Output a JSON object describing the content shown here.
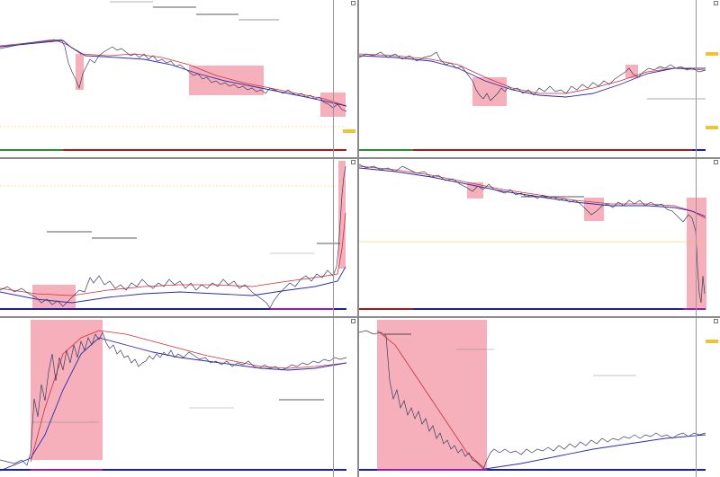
{
  "window": {
    "layout": "3x2 chart grid"
  },
  "colors": {
    "price": "#3d3d5c",
    "ema_red": "#d62b3a",
    "ema_blue": "#2a2ab0",
    "highlight": "#f4a7b5",
    "level_line": "#222222",
    "yellow_line": "#f1c232",
    "timeline_green": "#2e8b2e",
    "timeline_red": "#a81818",
    "timeline_blue": "#1c1cb0",
    "timeline_magenta": "#9a1caa"
  },
  "panels": [
    {
      "id": "p1",
      "title": "",
      "close_icon": "close-icon"
    },
    {
      "id": "p2",
      "title": "",
      "close_icon": "close-icon"
    },
    {
      "id": "p3",
      "title": "",
      "close_icon": "close-icon"
    },
    {
      "id": "p4",
      "title": "",
      "close_icon": "close-icon"
    },
    {
      "id": "p5",
      "title": "",
      "close_icon": "close-icon"
    },
    {
      "id": "p6",
      "title": "",
      "close_icon": "close-icon"
    }
  ]
}
